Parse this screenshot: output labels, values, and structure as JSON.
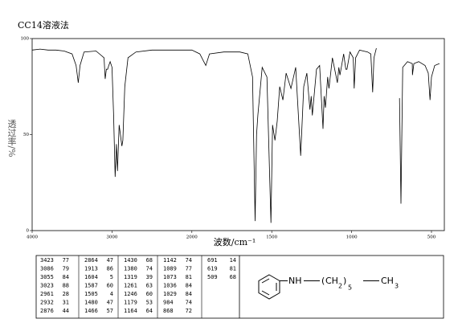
{
  "chart_data": {
    "type": "line",
    "title": "CC14溶液法",
    "xlabel": "波数/cm⁻¹",
    "ylabel": "透过率/%",
    "xlim": [
      4000,
      420
    ],
    "xticks": [
      4000,
      3000,
      2000,
      1500,
      1000,
      500
    ],
    "ylim": [
      0,
      100
    ],
    "yticks": [
      0,
      50,
      100
    ],
    "color": "#000000",
    "x": [
      4000,
      3900,
      3800,
      3700,
      3600,
      3500,
      3450,
      3423,
      3400,
      3350,
      3200,
      3100,
      3086,
      3070,
      3055,
      3040,
      3023,
      3000,
      2980,
      2961,
      2945,
      2932,
      2910,
      2876,
      2864,
      2840,
      2800,
      2700,
      2500,
      2300,
      2100,
      2000,
      1950,
      1913,
      1890,
      1800,
      1700,
      1650,
      1620,
      1604,
      1595,
      1587,
      1560,
      1530,
      1505,
      1495,
      1480,
      1466,
      1450,
      1430,
      1410,
      1380,
      1350,
      1319,
      1300,
      1280,
      1261,
      1253,
      1246,
      1220,
      1200,
      1179,
      1172,
      1164,
      1150,
      1142,
      1120,
      1089,
      1080,
      1073,
      1050,
      1036,
      1029,
      1010,
      990,
      984,
      975,
      950,
      900,
      880,
      868,
      860,
      845,
      800,
      700,
      691,
      680,
      650,
      620,
      619,
      610,
      580,
      540,
      520,
      509,
      500,
      480,
      450
    ],
    "values": [
      94,
      94.5,
      94,
      94,
      93.5,
      92,
      86,
      77,
      86,
      93,
      93.5,
      90,
      79,
      84,
      84,
      86,
      88,
      85,
      60,
      28,
      45,
      31,
      55,
      44,
      47,
      75,
      90,
      93,
      94,
      94,
      94,
      94,
      92,
      86,
      92,
      93,
      93,
      92,
      80,
      5,
      50,
      60,
      85,
      80,
      4,
      55,
      47,
      57,
      75,
      68,
      82,
      74,
      85,
      39,
      75,
      82,
      63,
      70,
      60,
      84,
      86,
      53,
      70,
      64,
      80,
      74,
      90,
      77,
      85,
      81,
      92,
      84,
      84,
      93,
      90,
      74,
      90,
      94,
      93,
      92,
      72,
      90,
      95,
      null,
      69,
      14,
      85,
      88,
      87,
      81,
      87,
      88,
      86,
      82,
      68,
      80,
      86,
      87
    ]
  },
  "peak_table": {
    "columns": [
      [
        [
          3423,
          77
        ],
        [
          3086,
          79
        ],
        [
          3055,
          84
        ],
        [
          3023,
          88
        ],
        [
          2961,
          28
        ],
        [
          2932,
          31
        ],
        [
          2876,
          44
        ]
      ],
      [
        [
          2864,
          47
        ],
        [
          1913,
          86
        ],
        [
          1604,
          5
        ],
        [
          1587,
          60
        ],
        [
          1505,
          4
        ],
        [
          1480,
          47
        ],
        [
          1466,
          57
        ]
      ],
      [
        [
          1430,
          68
        ],
        [
          1380,
          74
        ],
        [
          1319,
          39
        ],
        [
          1261,
          63
        ],
        [
          1246,
          60
        ],
        [
          1179,
          53
        ],
        [
          1164,
          64
        ]
      ],
      [
        [
          1142,
          74
        ],
        [
          1089,
          77
        ],
        [
          1073,
          81
        ],
        [
          1036,
          84
        ],
        [
          1029,
          84
        ],
        [
          984,
          74
        ],
        [
          868,
          72
        ]
      ],
      [
        [
          691,
          14
        ],
        [
          619,
          81
        ],
        [
          509,
          68
        ]
      ]
    ]
  },
  "structure": {
    "labels": [
      "NH",
      "(",
      "CH",
      "2",
      ")",
      "5",
      "CH",
      "3"
    ]
  }
}
